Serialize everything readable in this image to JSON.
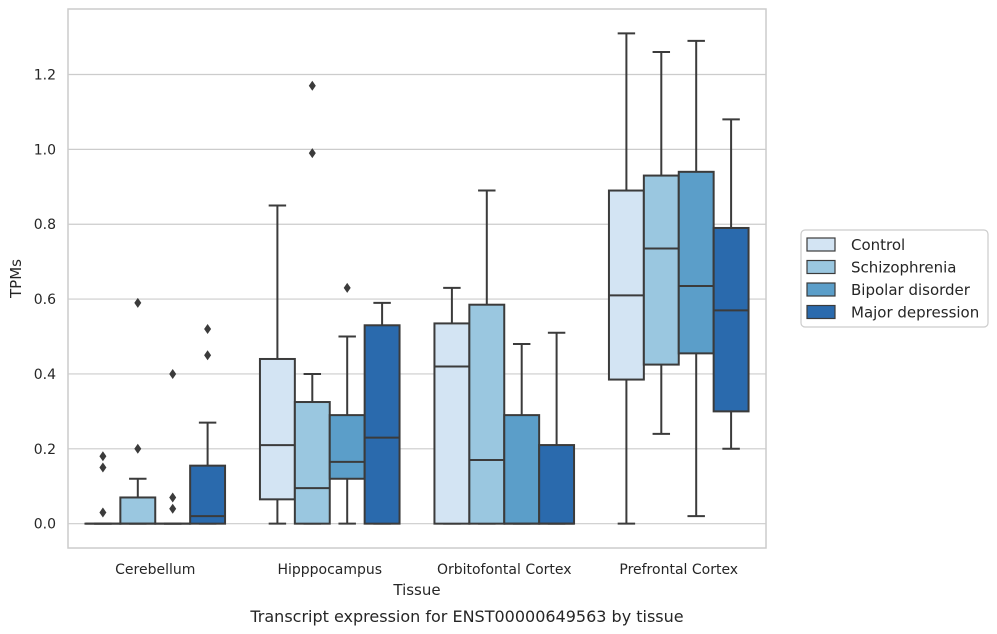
{
  "caption": "Transcript expression for ENST00000649563 by tissue",
  "chart_data": {
    "type": "boxplot",
    "title": "",
    "xlabel": "Tissue",
    "ylabel": "TPMs",
    "ylim": [
      -0.065,
      1.375
    ],
    "yticks": [
      0.0,
      0.2,
      0.4,
      0.6,
      0.8,
      1.0,
      1.2
    ],
    "ytick_labels": [
      "0.0",
      "0.2",
      "0.4",
      "0.6",
      "0.8",
      "1.0",
      "1.2"
    ],
    "grid": "horizontal",
    "legend_position": "right",
    "categories": [
      "Cerebellum",
      "Hipppocampus",
      "Orbitofontal Cortex",
      "Prefrontal Cortex"
    ],
    "series": [
      {
        "name": "Control",
        "color": "#d3e4f3",
        "boxes": [
          {
            "whislo": 0.0,
            "q1": 0.0,
            "med": 0.0,
            "q3": 0.0,
            "whishi": 0.0,
            "fliers": [
              0.03,
              0.15,
              0.18
            ]
          },
          {
            "whislo": 0.0,
            "q1": 0.065,
            "med": 0.21,
            "q3": 0.44,
            "whishi": 0.85,
            "fliers": []
          },
          {
            "whislo": 0.0,
            "q1": 0.0,
            "med": 0.42,
            "q3": 0.535,
            "whishi": 0.63,
            "fliers": []
          },
          {
            "whislo": 0.0,
            "q1": 0.385,
            "med": 0.61,
            "q3": 0.89,
            "whishi": 1.31,
            "fliers": []
          }
        ]
      },
      {
        "name": "Schizophrenia",
        "color": "#9ac7e0",
        "boxes": [
          {
            "whislo": 0.0,
            "q1": 0.0,
            "med": 0.0,
            "q3": 0.07,
            "whishi": 0.12,
            "fliers": [
              0.2,
              0.59
            ]
          },
          {
            "whislo": 0.0,
            "q1": 0.0,
            "med": 0.095,
            "q3": 0.325,
            "whishi": 0.4,
            "fliers": [
              0.99,
              1.17
            ]
          },
          {
            "whislo": 0.0,
            "q1": 0.0,
            "med": 0.17,
            "q3": 0.585,
            "whishi": 0.89,
            "fliers": []
          },
          {
            "whislo": 0.24,
            "q1": 0.425,
            "med": 0.735,
            "q3": 0.93,
            "whishi": 1.26,
            "fliers": []
          }
        ]
      },
      {
        "name": "Bipolar disorder",
        "color": "#5b9ec9",
        "boxes": [
          {
            "whislo": 0.0,
            "q1": 0.0,
            "med": 0.0,
            "q3": 0.0,
            "whishi": 0.0,
            "fliers": [
              0.04,
              0.07,
              0.4
            ]
          },
          {
            "whislo": 0.0,
            "q1": 0.12,
            "med": 0.165,
            "q3": 0.29,
            "whishi": 0.5,
            "fliers": [
              0.63
            ]
          },
          {
            "whislo": 0.0,
            "q1": 0.0,
            "med": 0.0,
            "q3": 0.29,
            "whishi": 0.48,
            "fliers": []
          },
          {
            "whislo": 0.02,
            "q1": 0.455,
            "med": 0.635,
            "q3": 0.94,
            "whishi": 1.29,
            "fliers": []
          }
        ]
      },
      {
        "name": "Major depression",
        "color": "#2a6aad",
        "boxes": [
          {
            "whislo": 0.0,
            "q1": 0.0,
            "med": 0.02,
            "q3": 0.155,
            "whishi": 0.27,
            "fliers": [
              0.45,
              0.52
            ]
          },
          {
            "whislo": 0.0,
            "q1": 0.0,
            "med": 0.23,
            "q3": 0.53,
            "whishi": 0.59,
            "fliers": []
          },
          {
            "whislo": 0.0,
            "q1": 0.0,
            "med": 0.0,
            "q3": 0.21,
            "whishi": 0.51,
            "fliers": []
          },
          {
            "whislo": 0.2,
            "q1": 0.3,
            "med": 0.57,
            "q3": 0.79,
            "whishi": 1.08,
            "fliers": []
          }
        ]
      }
    ]
  }
}
